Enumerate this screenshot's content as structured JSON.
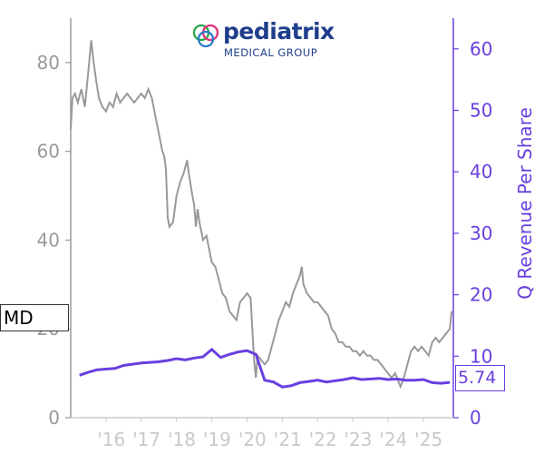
{
  "ticker": "MD",
  "latest_value_label": "5.74",
  "logo": {
    "word": "pediatrix",
    "sub": "MEDICAL GROUP"
  },
  "colors": {
    "price": "#999999",
    "revenue": "#6a3fe0",
    "brand": "#1f3e8c"
  },
  "chart_data": {
    "type": "line",
    "title": "",
    "xlabel": "",
    "ylabel_left": "",
    "ylabel_right": "Q Revenue Per Share",
    "x_tick_labels": [
      "'16",
      "'17",
      "'18",
      "'19",
      "'20",
      "'21",
      "'22",
      "'23",
      "'24",
      "'25"
    ],
    "x_range": [
      2015.0,
      2025.85
    ],
    "ylim_left": [
      0,
      90
    ],
    "ylim_right": [
      0,
      65
    ],
    "left_ticks": [
      0,
      20,
      40,
      60,
      80
    ],
    "right_ticks": [
      0,
      10,
      20,
      30,
      40,
      50,
      60
    ],
    "grid": false,
    "series": [
      {
        "name": "",
        "axis": "left",
        "points": [
          [
            2015.0,
            65
          ],
          [
            2015.05,
            72
          ],
          [
            2015.12,
            73
          ],
          [
            2015.2,
            71
          ],
          [
            2015.3,
            74
          ],
          [
            2015.4,
            70
          ],
          [
            2015.5,
            78
          ],
          [
            2015.58,
            85
          ],
          [
            2015.65,
            80
          ],
          [
            2015.72,
            76
          ],
          [
            2015.8,
            72
          ],
          [
            2015.9,
            70
          ],
          [
            2016.0,
            69
          ],
          [
            2016.1,
            71
          ],
          [
            2016.2,
            70
          ],
          [
            2016.3,
            73
          ],
          [
            2016.4,
            71
          ],
          [
            2016.5,
            72
          ],
          [
            2016.6,
            73
          ],
          [
            2016.7,
            72
          ],
          [
            2016.8,
            71
          ],
          [
            2016.9,
            72
          ],
          [
            2017.0,
            73
          ],
          [
            2017.1,
            72
          ],
          [
            2017.2,
            74
          ],
          [
            2017.3,
            72
          ],
          [
            2017.4,
            68
          ],
          [
            2017.5,
            64
          ],
          [
            2017.6,
            60
          ],
          [
            2017.65,
            59
          ],
          [
            2017.7,
            56
          ],
          [
            2017.75,
            45
          ],
          [
            2017.8,
            43
          ],
          [
            2017.9,
            44
          ],
          [
            2018.0,
            50
          ],
          [
            2018.1,
            53
          ],
          [
            2018.2,
            55
          ],
          [
            2018.3,
            58
          ],
          [
            2018.35,
            55
          ],
          [
            2018.45,
            50
          ],
          [
            2018.5,
            48
          ],
          [
            2018.55,
            43
          ],
          [
            2018.6,
            47
          ],
          [
            2018.65,
            44
          ],
          [
            2018.75,
            40
          ],
          [
            2018.85,
            41
          ],
          [
            2018.95,
            37
          ],
          [
            2019.0,
            35
          ],
          [
            2019.1,
            34
          ],
          [
            2019.2,
            31
          ],
          [
            2019.3,
            28
          ],
          [
            2019.4,
            27
          ],
          [
            2019.5,
            24
          ],
          [
            2019.6,
            23
          ],
          [
            2019.7,
            22
          ],
          [
            2019.8,
            26
          ],
          [
            2019.9,
            27
          ],
          [
            2020.0,
            28
          ],
          [
            2020.1,
            27
          ],
          [
            2020.15,
            20
          ],
          [
            2020.2,
            13
          ],
          [
            2020.25,
            9
          ],
          [
            2020.3,
            14
          ],
          [
            2020.4,
            13
          ],
          [
            2020.5,
            12
          ],
          [
            2020.6,
            13
          ],
          [
            2020.7,
            16
          ],
          [
            2020.8,
            19
          ],
          [
            2020.9,
            22
          ],
          [
            2021.0,
            24
          ],
          [
            2021.1,
            26
          ],
          [
            2021.2,
            25
          ],
          [
            2021.3,
            28
          ],
          [
            2021.4,
            30
          ],
          [
            2021.5,
            32
          ],
          [
            2021.55,
            34
          ],
          [
            2021.6,
            30
          ],
          [
            2021.7,
            28
          ],
          [
            2021.8,
            27
          ],
          [
            2021.9,
            26
          ],
          [
            2022.0,
            26
          ],
          [
            2022.1,
            25
          ],
          [
            2022.2,
            24
          ],
          [
            2022.3,
            23
          ],
          [
            2022.4,
            20
          ],
          [
            2022.5,
            19
          ],
          [
            2022.6,
            17
          ],
          [
            2022.7,
            17
          ],
          [
            2022.8,
            16
          ],
          [
            2022.9,
            16
          ],
          [
            2023.0,
            15
          ],
          [
            2023.1,
            15
          ],
          [
            2023.2,
            14
          ],
          [
            2023.3,
            15
          ],
          [
            2023.4,
            14
          ],
          [
            2023.5,
            14
          ],
          [
            2023.6,
            13
          ],
          [
            2023.7,
            13
          ],
          [
            2023.8,
            12
          ],
          [
            2023.9,
            11
          ],
          [
            2024.0,
            10
          ],
          [
            2024.1,
            9
          ],
          [
            2024.2,
            10
          ],
          [
            2024.3,
            8
          ],
          [
            2024.35,
            7
          ],
          [
            2024.45,
            9
          ],
          [
            2024.55,
            12
          ],
          [
            2024.65,
            15
          ],
          [
            2024.75,
            16
          ],
          [
            2024.85,
            15
          ],
          [
            2024.95,
            16
          ],
          [
            2025.05,
            15
          ],
          [
            2025.15,
            14
          ],
          [
            2025.25,
            17
          ],
          [
            2025.35,
            18
          ],
          [
            2025.45,
            17
          ],
          [
            2025.55,
            18
          ],
          [
            2025.65,
            19
          ],
          [
            2025.75,
            20
          ],
          [
            2025.8,
            24
          ]
        ]
      },
      {
        "name": "Q Revenue Per Share",
        "axis": "right",
        "points": [
          [
            2015.25,
            6.9
          ],
          [
            2015.5,
            7.4
          ],
          [
            2015.75,
            7.8
          ],
          [
            2016.0,
            7.9
          ],
          [
            2016.25,
            8.0
          ],
          [
            2016.5,
            8.5
          ],
          [
            2016.75,
            8.7
          ],
          [
            2017.0,
            8.9
          ],
          [
            2017.25,
            9.0
          ],
          [
            2017.5,
            9.1
          ],
          [
            2017.75,
            9.3
          ],
          [
            2018.0,
            9.6
          ],
          [
            2018.25,
            9.4
          ],
          [
            2018.5,
            9.7
          ],
          [
            2018.75,
            9.9
          ],
          [
            2019.0,
            11.1
          ],
          [
            2019.25,
            9.8
          ],
          [
            2019.5,
            10.3
          ],
          [
            2019.75,
            10.7
          ],
          [
            2020.0,
            10.9
          ],
          [
            2020.25,
            10.3
          ],
          [
            2020.5,
            6.1
          ],
          [
            2020.75,
            5.8
          ],
          [
            2021.0,
            5.0
          ],
          [
            2021.25,
            5.2
          ],
          [
            2021.5,
            5.7
          ],
          [
            2021.75,
            5.9
          ],
          [
            2022.0,
            6.1
          ],
          [
            2022.25,
            5.8
          ],
          [
            2022.5,
            6.0
          ],
          [
            2022.75,
            6.2
          ],
          [
            2023.0,
            6.5
          ],
          [
            2023.25,
            6.2
          ],
          [
            2023.5,
            6.3
          ],
          [
            2023.75,
            6.4
          ],
          [
            2024.0,
            6.2
          ],
          [
            2024.25,
            6.3
          ],
          [
            2024.5,
            6.1
          ],
          [
            2024.75,
            6.1
          ],
          [
            2025.0,
            6.2
          ],
          [
            2025.25,
            5.7
          ],
          [
            2025.5,
            5.6
          ],
          [
            2025.75,
            5.74
          ]
        ]
      }
    ]
  }
}
